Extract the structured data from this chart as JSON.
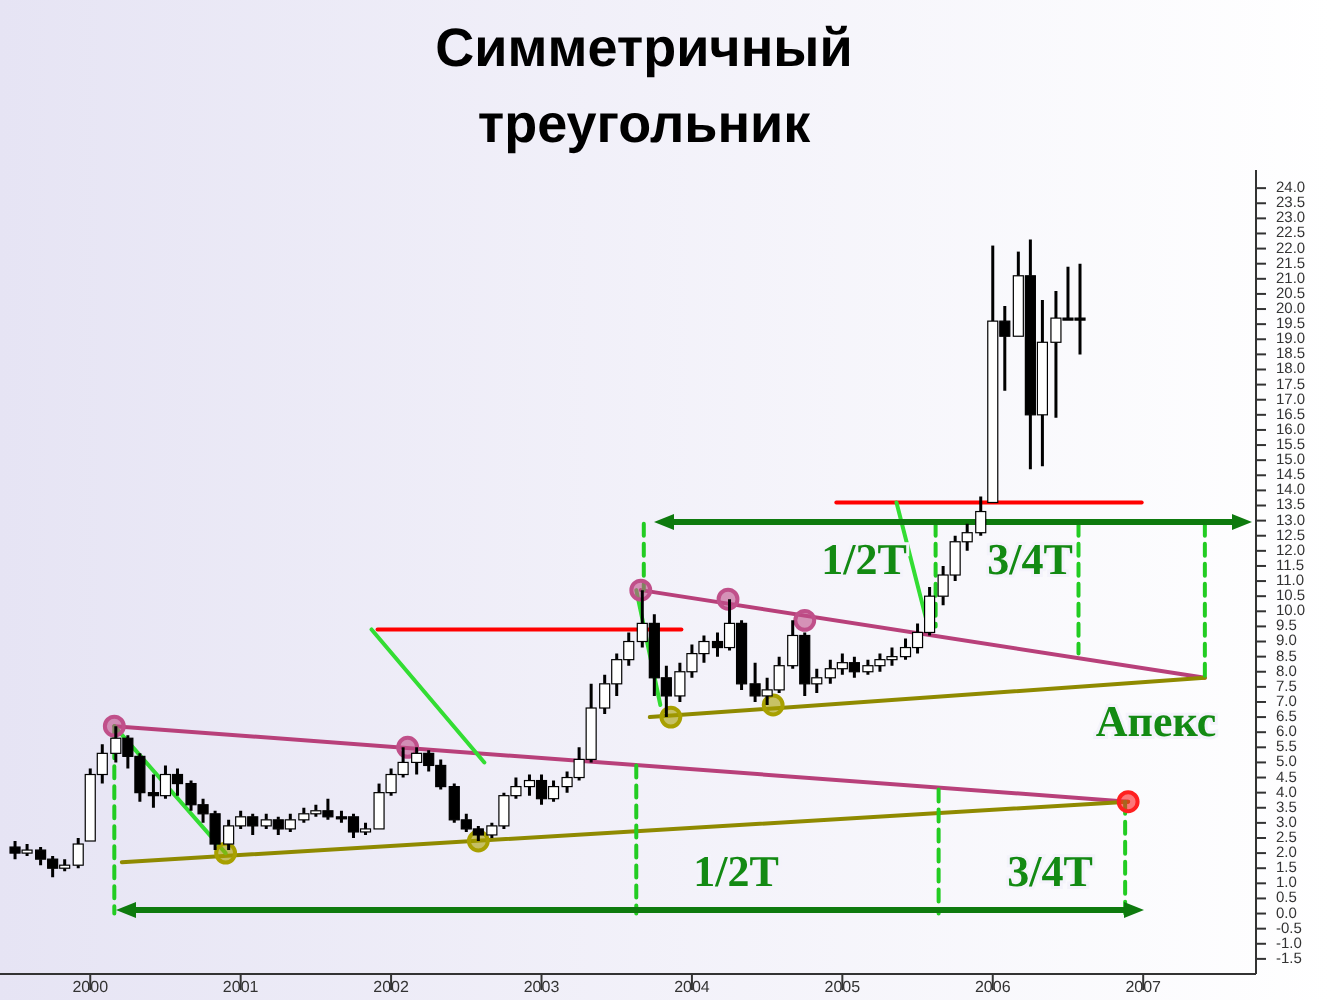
{
  "chart_data": {
    "type": "candlestick",
    "title": "Симметричный\nтреугольник",
    "x": [
      1999.5,
      1999.58,
      1999.67,
      1999.75,
      1999.83,
      1999.92,
      2000,
      2000.08,
      2000.17,
      2000.25,
      2000.33,
      2000.42,
      2000.5,
      2000.58,
      2000.67,
      2000.75,
      2000.83,
      2000.92,
      2001,
      2001.08,
      2001.17,
      2001.25,
      2001.33,
      2001.42,
      2001.5,
      2001.58,
      2001.67,
      2001.75,
      2001.83,
      2001.92,
      2002,
      2002.08,
      2002.17,
      2002.25,
      2002.33,
      2002.42,
      2002.5,
      2002.58,
      2002.67,
      2002.75,
      2002.83,
      2002.92,
      2003,
      2003.08,
      2003.17,
      2003.25,
      2003.33,
      2003.42,
      2003.5,
      2003.58,
      2003.67,
      2003.75,
      2003.83,
      2003.92,
      2004,
      2004.08,
      2004.17,
      2004.25,
      2004.33,
      2004.42,
      2004.5,
      2004.58,
      2004.67,
      2004.75,
      2004.83,
      2004.92,
      2005,
      2005.08,
      2005.17,
      2005.25,
      2005.33,
      2005.42,
      2005.5,
      2005.58,
      2005.67,
      2005.75,
      2005.83,
      2005.92,
      2006,
      2006.08,
      2006.17,
      2006.25,
      2006.33,
      2006.42,
      2006.5,
      2006.58
    ],
    "ohlc": [
      [
        2.2,
        2.4,
        1.8,
        2.0
      ],
      [
        2.0,
        2.3,
        1.9,
        2.1
      ],
      [
        2.1,
        2.2,
        1.6,
        1.8
      ],
      [
        1.8,
        1.9,
        1.2,
        1.5
      ],
      [
        1.5,
        1.8,
        1.4,
        1.6
      ],
      [
        1.6,
        2.5,
        1.5,
        2.3
      ],
      [
        2.4,
        4.8,
        2.4,
        4.6
      ],
      [
        4.6,
        5.6,
        4.3,
        5.3
      ],
      [
        5.3,
        6.2,
        5.0,
        5.8
      ],
      [
        5.8,
        5.9,
        4.8,
        5.2
      ],
      [
        5.2,
        5.3,
        3.7,
        4.0
      ],
      [
        4.0,
        4.6,
        3.5,
        3.9
      ],
      [
        3.9,
        4.9,
        3.8,
        4.6
      ],
      [
        4.6,
        4.8,
        3.9,
        4.3
      ],
      [
        4.3,
        4.4,
        3.4,
        3.6
      ],
      [
        3.6,
        3.8,
        3.0,
        3.3
      ],
      [
        3.3,
        3.4,
        2.1,
        2.3
      ],
      [
        2.3,
        3.1,
        2.1,
        2.9
      ],
      [
        2.9,
        3.4,
        2.8,
        3.2
      ],
      [
        3.2,
        3.3,
        2.6,
        2.9
      ],
      [
        2.9,
        3.3,
        2.8,
        3.1
      ],
      [
        3.1,
        3.2,
        2.6,
        2.8
      ],
      [
        2.8,
        3.3,
        2.7,
        3.1
      ],
      [
        3.1,
        3.5,
        3.0,
        3.3
      ],
      [
        3.3,
        3.6,
        3.2,
        3.4
      ],
      [
        3.4,
        3.8,
        3.1,
        3.2
      ],
      [
        3.2,
        3.4,
        3.0,
        3.2
      ],
      [
        3.2,
        3.3,
        2.5,
        2.7
      ],
      [
        2.7,
        3.0,
        2.6,
        2.8
      ],
      [
        2.8,
        4.3,
        2.8,
        4.0
      ],
      [
        4.0,
        4.8,
        3.9,
        4.6
      ],
      [
        4.6,
        5.5,
        4.5,
        5.0
      ],
      [
        5.0,
        5.5,
        4.6,
        5.3
      ],
      [
        5.3,
        5.4,
        4.7,
        4.9
      ],
      [
        4.9,
        5.1,
        4.1,
        4.2
      ],
      [
        4.2,
        4.3,
        3.0,
        3.1
      ],
      [
        3.1,
        3.3,
        2.7,
        2.8
      ],
      [
        2.8,
        2.9,
        2.4,
        2.6
      ],
      [
        2.6,
        3.0,
        2.5,
        2.9
      ],
      [
        2.9,
        4.0,
        2.8,
        3.9
      ],
      [
        3.9,
        4.5,
        3.8,
        4.2
      ],
      [
        4.2,
        4.6,
        3.9,
        4.4
      ],
      [
        4.4,
        4.6,
        3.6,
        3.8
      ],
      [
        3.8,
        4.4,
        3.7,
        4.2
      ],
      [
        4.2,
        4.7,
        4.0,
        4.5
      ],
      [
        4.5,
        5.5,
        4.4,
        5.1
      ],
      [
        5.1,
        7.6,
        5.0,
        6.8
      ],
      [
        6.8,
        7.9,
        6.6,
        7.6
      ],
      [
        7.6,
        8.6,
        7.2,
        8.4
      ],
      [
        8.4,
        9.3,
        8.2,
        9.0
      ],
      [
        9.0,
        10.7,
        8.8,
        9.6
      ],
      [
        9.6,
        9.9,
        7.2,
        7.8
      ],
      [
        7.8,
        8.2,
        6.5,
        7.2
      ],
      [
        7.2,
        8.3,
        7.0,
        8.0
      ],
      [
        8.0,
        8.9,
        7.8,
        8.6
      ],
      [
        8.6,
        9.2,
        8.3,
        9.0
      ],
      [
        9.0,
        9.3,
        8.5,
        8.8
      ],
      [
        8.8,
        10.4,
        8.7,
        9.6
      ],
      [
        9.6,
        9.7,
        7.4,
        7.6
      ],
      [
        7.6,
        8.3,
        7.0,
        7.2
      ],
      [
        7.2,
        7.8,
        6.9,
        7.4
      ],
      [
        7.4,
        8.5,
        7.3,
        8.2
      ],
      [
        8.2,
        9.7,
        8.1,
        9.2
      ],
      [
        9.2,
        9.3,
        7.2,
        7.6
      ],
      [
        7.6,
        8.1,
        7.3,
        7.8
      ],
      [
        7.8,
        8.4,
        7.6,
        8.1
      ],
      [
        8.1,
        8.6,
        7.9,
        8.3
      ],
      [
        8.3,
        8.5,
        7.8,
        8.0
      ],
      [
        8.0,
        8.4,
        7.9,
        8.2
      ],
      [
        8.2,
        8.6,
        8.0,
        8.4
      ],
      [
        8.4,
        8.8,
        8.2,
        8.5
      ],
      [
        8.5,
        9.1,
        8.4,
        8.8
      ],
      [
        8.8,
        9.6,
        8.6,
        9.3
      ],
      [
        9.3,
        10.8,
        9.2,
        10.5
      ],
      [
        10.5,
        11.5,
        10.2,
        11.2
      ],
      [
        11.2,
        12.5,
        11.0,
        12.3
      ],
      [
        12.3,
        12.9,
        12.0,
        12.6
      ],
      [
        12.6,
        13.8,
        12.5,
        13.3
      ],
      [
        13.6,
        22.1,
        13.6,
        19.6
      ],
      [
        19.6,
        20.1,
        17.3,
        19.1
      ],
      [
        19.1,
        21.9,
        19.1,
        21.1
      ],
      [
        21.1,
        22.3,
        14.7,
        16.5
      ],
      [
        16.5,
        20.3,
        14.8,
        18.9
      ],
      [
        18.9,
        20.6,
        16.4,
        19.7
      ],
      [
        19.7,
        21.4,
        19.7,
        19.7
      ],
      [
        19.7,
        21.5,
        18.5,
        19.7
      ]
    ],
    "series": [
      {
        "type": "line",
        "color": "#b8407a",
        "x": [
          2000.16,
          2006.9
        ],
        "values": [
          6.2,
          3.7
        ]
      },
      {
        "type": "line",
        "color": "#8f8a00",
        "x": [
          2000.21,
          2006.9
        ],
        "values": [
          1.7,
          3.7
        ]
      },
      {
        "type": "line",
        "color": "#b8407a",
        "x": [
          2003.66,
          2007.41
        ],
        "values": [
          10.7,
          7.8
        ]
      },
      {
        "type": "line",
        "color": "#8f8a00",
        "x": [
          2003.72,
          2007.41
        ],
        "values": [
          6.5,
          7.8
        ]
      },
      {
        "type": "line",
        "color": "#ff0000",
        "x": [
          2001.91,
          2003.93
        ],
        "values": [
          9.4,
          9.4
        ]
      },
      {
        "type": "line",
        "color": "#ff0000",
        "x": [
          2004.96,
          2006.99
        ],
        "values": [
          13.6,
          13.6
        ]
      },
      {
        "type": "line",
        "color": "#33dd33",
        "x": [
          2000.16,
          2000.9
        ],
        "values": [
          6.2,
          2.0
        ]
      },
      {
        "type": "line",
        "color": "#33dd33",
        "x": [
          2001.87,
          2002.62
        ],
        "values": [
          9.4,
          5.0
        ]
      },
      {
        "type": "line",
        "color": "#33dd33",
        "x": [
          2003.63,
          2003.79
        ],
        "values": [
          10.7,
          6.9
        ]
      },
      {
        "type": "line",
        "color": "#33dd33",
        "x": [
          2005.36,
          2005.57
        ],
        "values": [
          13.6,
          9.5
        ]
      },
      {
        "type": "line",
        "color": "#22cc22",
        "line_style": "dashed",
        "x": [
          2000.16,
          2000.16
        ],
        "values": [
          6.2,
          0
        ]
      },
      {
        "type": "line",
        "color": "#22cc22",
        "line_style": "dashed",
        "x": [
          2003.63,
          2003.63
        ],
        "values": [
          4.9,
          0
        ]
      },
      {
        "type": "line",
        "color": "#22cc22",
        "line_style": "dashed",
        "x": [
          2005.64,
          2005.64
        ],
        "values": [
          4.1,
          0
        ]
      },
      {
        "type": "line",
        "color": "#22cc22",
        "line_style": "dashed",
        "x": [
          2006.88,
          2006.88
        ],
        "values": [
          3.7,
          0
        ]
      },
      {
        "type": "line",
        "color": "#22cc22",
        "line_style": "dashed",
        "x": [
          2003.68,
          2003.68
        ],
        "values": [
          12.9,
          10.7
        ]
      },
      {
        "type": "line",
        "color": "#22cc22",
        "line_style": "dashed",
        "x": [
          2005.62,
          2005.62
        ],
        "values": [
          12.9,
          9.5
        ]
      },
      {
        "type": "line",
        "color": "#22cc22",
        "line_style": "dashed",
        "x": [
          2006.57,
          2006.57
        ],
        "values": [
          12.9,
          8.6
        ]
      },
      {
        "type": "line",
        "color": "#22cc22",
        "line_style": "dashed",
        "x": [
          2007.41,
          2007.41
        ],
        "values": [
          12.9,
          7.8
        ]
      },
      {
        "type": "scatter",
        "color": "#c0508a",
        "marker": "circle",
        "x": [
          2000.16,
          2002.11,
          2003.66,
          2004.24,
          2004.75
        ],
        "values": [
          6.2,
          5.5,
          10.7,
          10.4,
          9.7
        ]
      },
      {
        "type": "scatter",
        "color": "#a8a000",
        "marker": "circle",
        "x": [
          2000.9,
          2002.58,
          2003.86,
          2004.54
        ],
        "values": [
          2.0,
          2.4,
          6.5,
          6.9
        ]
      },
      {
        "type": "scatter",
        "color": "#ff2020",
        "marker": "circle",
        "x": [
          2006.9
        ],
        "values": [
          3.7
        ]
      }
    ],
    "annotations": [
      "1/2T",
      "3/4T",
      "1/2T",
      "3/4T",
      "Апекс"
    ],
    "xlim": [
      1999.4,
      2007.75
    ],
    "xticks": [
      2000,
      2001,
      2002,
      2003,
      2004,
      2005,
      2006,
      2007
    ],
    "ylim": [
      -2.0,
      24.6
    ],
    "yticks": [
      -1.5,
      {
        "value": -1,
        "label": "-1.0"
      },
      -0.5,
      {
        "value": 0,
        "label": "0.0"
      },
      0.5,
      {
        "value": 1,
        "label": "1.0"
      },
      1.5,
      {
        "value": 2,
        "label": "2.0"
      },
      2.5,
      {
        "value": 3,
        "label": "3.0"
      },
      3.5,
      {
        "value": 4,
        "label": "4.0"
      },
      4.5,
      {
        "value": 5,
        "label": "5.0"
      },
      5.5,
      {
        "value": 6,
        "label": "6.0"
      },
      6.5,
      {
        "value": 7,
        "label": "7.0"
      },
      7.5,
      {
        "value": 8,
        "label": "8.0"
      },
      8.5,
      {
        "value": 9,
        "label": "9.0"
      },
      9.5,
      {
        "value": 10,
        "label": "10.0"
      },
      10.5,
      {
        "value": 11,
        "label": "11.0"
      },
      11.5,
      {
        "value": 12,
        "label": "12.0"
      },
      12.5,
      {
        "value": 13,
        "label": "13.0"
      },
      13.5,
      {
        "value": 14,
        "label": "14.0"
      },
      14.5,
      {
        "value": 15,
        "label": "15.0"
      },
      15.5,
      {
        "value": 16,
        "label": "16.0"
      },
      16.5,
      {
        "value": 17,
        "label": "17.0"
      },
      17.5,
      {
        "value": 18,
        "label": "18.0"
      },
      18.5,
      {
        "value": 19,
        "label": "19.0"
      },
      19.5,
      {
        "value": 20,
        "label": "20.0"
      },
      20.5,
      {
        "value": 21,
        "label": "21.0"
      },
      21.5,
      {
        "value": 22,
        "label": "22.0"
      },
      22.5,
      {
        "value": 23,
        "label": "23.0"
      },
      23.5,
      {
        "value": 24,
        "label": "24.0"
      }
    ]
  }
}
